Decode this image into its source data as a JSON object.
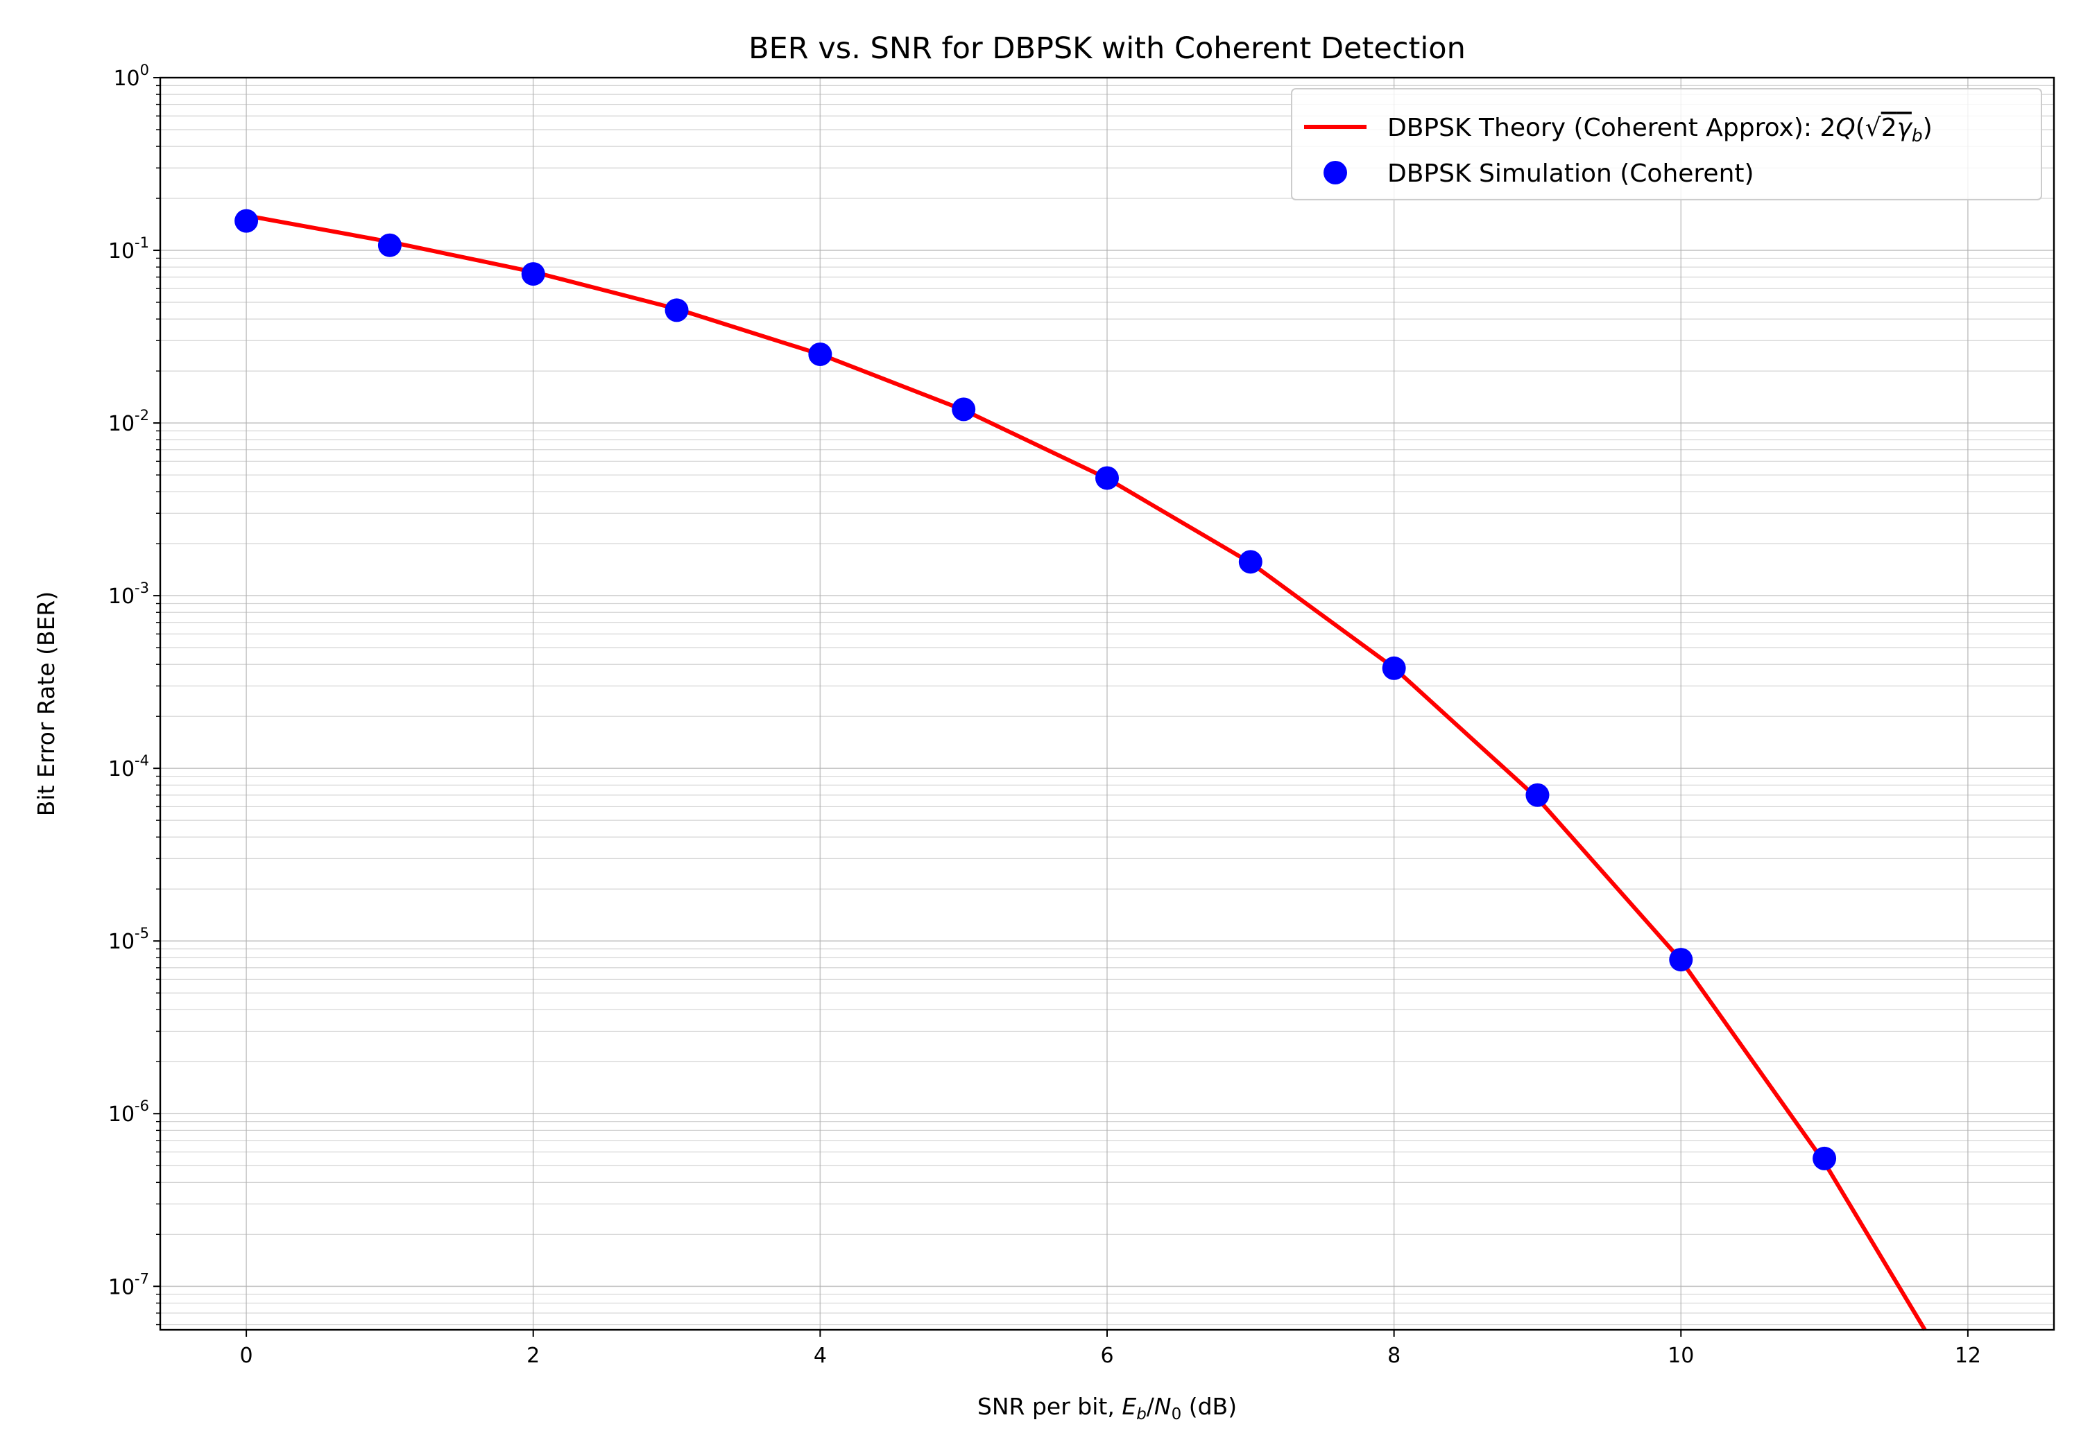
{
  "chart_data": {
    "type": "line",
    "title": "BER vs. SNR for DBPSK with Coherent Detection",
    "xlabel": "SNR per bit, E_b/N_0 (dB)",
    "ylabel": "Bit Error Rate (BER)",
    "x_scale": "linear",
    "y_scale": "log",
    "xlim": [
      -0.6,
      12.6
    ],
    "ylim": [
      5.6e-08,
      1
    ],
    "x_ticks": [
      0,
      2,
      4,
      6,
      8,
      10,
      12
    ],
    "y_tick_exponents": [
      0,
      -1,
      -2,
      -3,
      -4,
      -5,
      -6,
      -7
    ],
    "grid": true,
    "legend_position": "top-right",
    "series": [
      {
        "name": "DBPSK Theory (Coherent Approx): 2Q(√(2γ_b))",
        "kind": "line",
        "color": "#ff0000",
        "x": [
          0,
          1,
          2,
          3,
          4,
          5,
          6,
          7,
          8,
          9,
          10,
          11,
          11.7
        ],
        "y": [
          0.159,
          0.112,
          0.075,
          0.0458,
          0.025,
          0.0119,
          0.00477,
          0.00155,
          0.000382,
          6.69e-05,
          7.74e-06,
          5.22e-07,
          5.6e-08
        ]
      },
      {
        "name": "DBPSK Simulation (Coherent)",
        "kind": "scatter",
        "color": "#0000ff",
        "x": [
          0,
          1,
          2,
          3,
          4,
          5,
          6,
          7,
          8,
          9,
          10,
          11
        ],
        "y": [
          0.148,
          0.107,
          0.073,
          0.045,
          0.025,
          0.012,
          0.0048,
          0.00157,
          0.00038,
          7e-05,
          7.8e-06,
          5.5e-07
        ]
      }
    ]
  }
}
